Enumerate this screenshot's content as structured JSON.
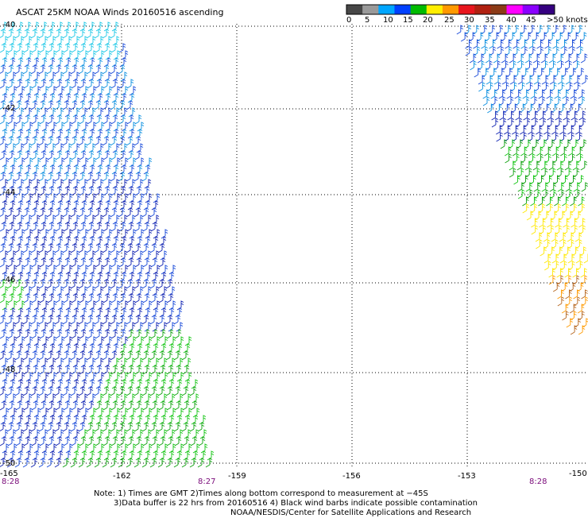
{
  "title": "ASCAT 25KM NOAA Winds 20160516 ascending",
  "legend": {
    "labels": [
      "0",
      "5",
      "10",
      "15",
      "20",
      "25",
      "30",
      "35",
      "40",
      "45",
      ">50 knots"
    ],
    "colors": [
      "#474747",
      "#9a9a9a",
      "#00a6ff",
      "#0040ff",
      "#00bb00",
      "#ffee00",
      "#ff9900",
      "#e8151d",
      "#b02010",
      "#8b3a16",
      "#ff00ff",
      "#8a00ff",
      "#350080"
    ]
  },
  "lat_labels": [
    "-40",
    "-42",
    "-44",
    "-46",
    "-48",
    "-50"
  ],
  "lon_labels": [
    "-165",
    "-162",
    "-159",
    "-156",
    "-153",
    "-150"
  ],
  "time_labels": [
    "8:28",
    "8:27",
    "8:28"
  ],
  "notes": {
    "line1": "Note: 1) Times are GMT 2)Times along bottom correspond to measurement at −45S",
    "line2": "3)Data buffer is 22 hrs from 20160516 4) Black wind barbs indicate possible contamination",
    "line3": "NOAA/NESDIS/Center for Satellite Applications and Research"
  }
}
